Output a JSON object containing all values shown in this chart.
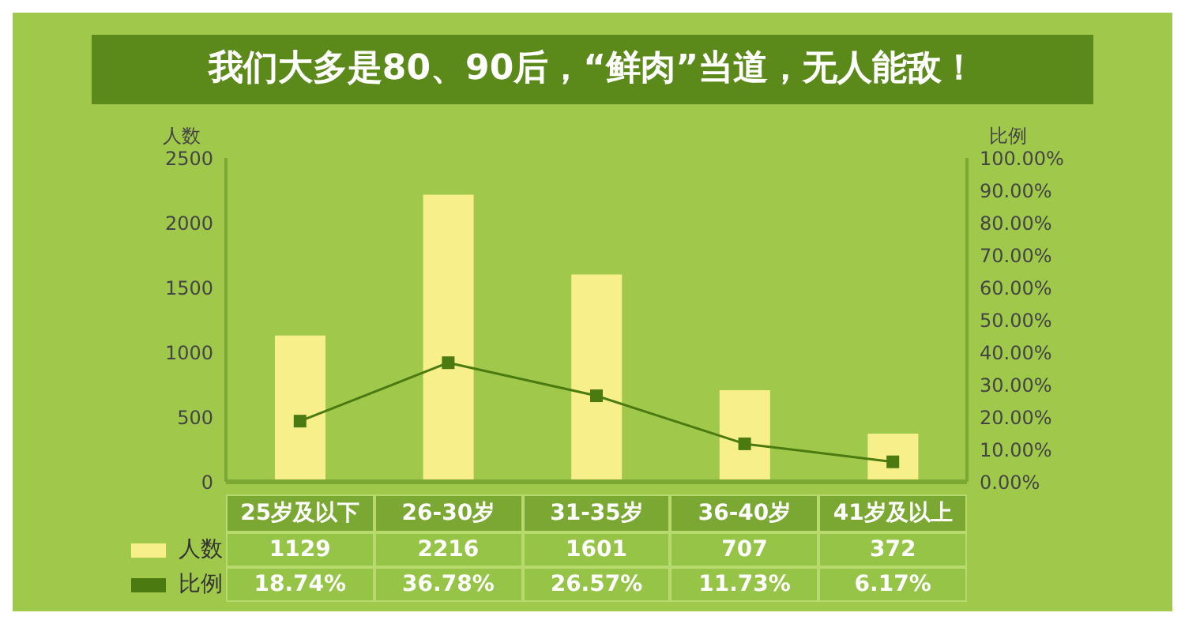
{
  "chart_data": {
    "type": "bar",
    "title": "我们大多是80、90后，“鲜肉”当道，无人能敌！",
    "ylabel": "人数",
    "y2label": "比例",
    "categories": [
      "25岁及以下",
      "26-30岁",
      "31-35岁",
      "36-40岁",
      "41岁及以上"
    ],
    "series": [
      {
        "name": "人数",
        "color": "#f7f08a",
        "values": [
          1129,
          2216,
          1601,
          707,
          372
        ],
        "value_labels": [
          "1129",
          "2216",
          "1601",
          "707",
          "372"
        ]
      },
      {
        "name": "比例",
        "type": "line",
        "axis": "y2",
        "color": "#4a7a10",
        "values": [
          18.74,
          36.78,
          26.57,
          11.73,
          6.17
        ],
        "value_labels": [
          "18.74%",
          "36.78%",
          "26.57%",
          "11.73%",
          "6.17%"
        ]
      }
    ],
    "ylim": [
      0,
      2500
    ],
    "yticks": [
      0,
      500,
      1000,
      1500,
      2000,
      2500
    ],
    "y2lim": [
      0,
      100
    ],
    "y2ticks": [
      {
        "value": 0,
        "label": "0.00%"
      },
      {
        "value": 10,
        "label": "10.00%"
      },
      {
        "value": 20,
        "label": "20.00%"
      },
      {
        "value": 30,
        "label": "30.00%"
      },
      {
        "value": 40,
        "label": "40.00%"
      },
      {
        "value": 50,
        "label": "50.00%"
      },
      {
        "value": 60,
        "label": "60.00%"
      },
      {
        "value": 70,
        "label": "70.00%"
      },
      {
        "value": 80,
        "label": "80.00%"
      },
      {
        "value": 90,
        "label": "90.00%"
      },
      {
        "value": 100,
        "label": "100.00%"
      }
    ],
    "grid": false,
    "legend": "bottom left",
    "marker": "square",
    "line_style": "solid"
  }
}
